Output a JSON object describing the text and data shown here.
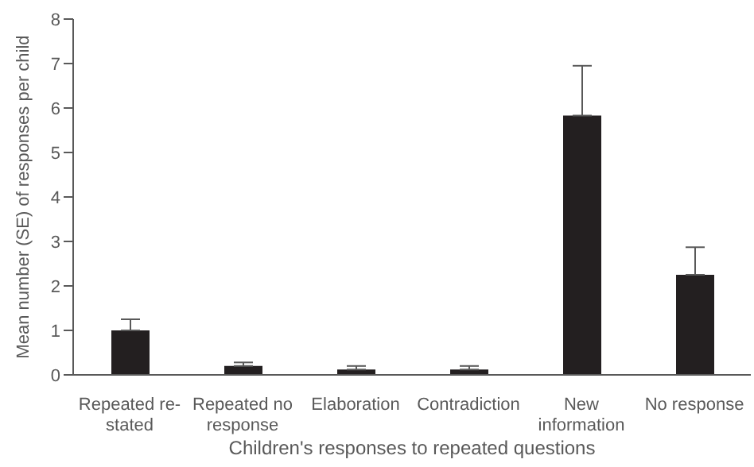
{
  "chart_data": {
    "type": "bar",
    "xlabel": "Children's responses to repeated questions",
    "ylabel": "Mean number (SE) of responses per child",
    "categories": [
      "Repeated re-stated",
      "Repeated no response",
      "Elaboration",
      "Contradiction",
      "New information",
      "No response"
    ],
    "values": [
      1.0,
      0.2,
      0.12,
      0.12,
      5.83,
      2.25
    ],
    "errors": [
      [
        1.0,
        1.25
      ],
      [
        0.2,
        0.28
      ],
      [
        0.12,
        0.2
      ],
      [
        0.12,
        0.2
      ],
      [
        5.83,
        6.95
      ],
      [
        2.25,
        2.87
      ]
    ],
    "color": "#231f20",
    "ylim": [
      0,
      8
    ],
    "yticks": [
      0,
      1,
      2,
      3,
      4,
      5,
      6,
      7,
      8
    ],
    "grid": false,
    "legend": false
  }
}
